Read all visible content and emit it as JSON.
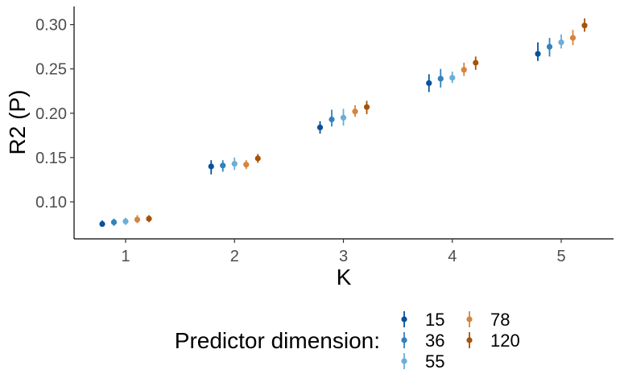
{
  "chart_data": {
    "type": "scatter",
    "subtype": "pointrange",
    "xlabel": "K",
    "ylabel": "R2 (P)",
    "x_categories": [
      "1",
      "2",
      "3",
      "4",
      "5"
    ],
    "ylim": [
      0.06,
      0.32
    ],
    "y_ticks": [
      "0.10",
      "0.15",
      "0.20",
      "0.25",
      "0.30"
    ],
    "grid": false,
    "legend": {
      "title": "Predictor dimension:",
      "position": "bottom"
    },
    "series": [
      {
        "name": "15",
        "color": "#08519c",
        "values": [
          0.075,
          0.14,
          0.184,
          0.234,
          0.267
        ],
        "lower": [
          0.072,
          0.131,
          0.177,
          0.224,
          0.259
        ],
        "upper": [
          0.079,
          0.147,
          0.191,
          0.244,
          0.28
        ]
      },
      {
        "name": "36",
        "color": "#3182bd",
        "values": [
          0.077,
          0.141,
          0.193,
          0.239,
          0.275
        ],
        "lower": [
          0.073,
          0.134,
          0.185,
          0.229,
          0.264
        ],
        "upper": [
          0.081,
          0.147,
          0.204,
          0.25,
          0.285
        ]
      },
      {
        "name": "55",
        "color": "#6baed6",
        "values": [
          0.078,
          0.143,
          0.195,
          0.24,
          0.28
        ],
        "lower": [
          0.074,
          0.136,
          0.186,
          0.234,
          0.273
        ],
        "upper": [
          0.082,
          0.15,
          0.205,
          0.247,
          0.289
        ]
      },
      {
        "name": "78",
        "color": "#d6843f",
        "values": [
          0.08,
          0.142,
          0.202,
          0.249,
          0.285
        ],
        "lower": [
          0.076,
          0.137,
          0.196,
          0.242,
          0.277
        ],
        "upper": [
          0.085,
          0.147,
          0.209,
          0.257,
          0.294
        ]
      },
      {
        "name": "120",
        "color": "#a6530a",
        "values": [
          0.081,
          0.149,
          0.207,
          0.257,
          0.299
        ],
        "lower": [
          0.077,
          0.144,
          0.199,
          0.249,
          0.292
        ],
        "upper": [
          0.085,
          0.154,
          0.214,
          0.264,
          0.307
        ]
      }
    ]
  }
}
